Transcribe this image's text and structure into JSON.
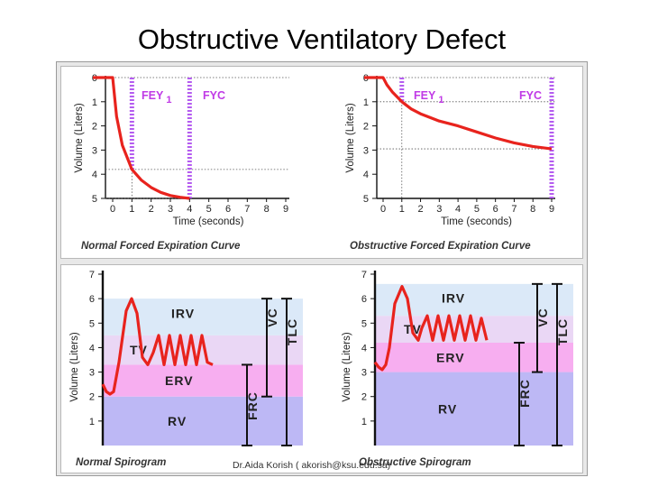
{
  "slide": {
    "title": "Obstructive Ventilatory Defect",
    "footer": "Dr.Aida Korish ( akorish@ksu.edu.sa)"
  },
  "colors": {
    "curve": "#e8231d",
    "marker": "#b45cf0",
    "label": "#c03ae6",
    "irv": "#dbe9f8",
    "tv": "#ead7f5",
    "erv": "#f7aef0",
    "rv": "#bdb8f5"
  },
  "chart_data": [
    {
      "type": "line",
      "caption": "Normal Forced Expiration Curve",
      "xlabel": "Time (seconds)",
      "ylabel": "Volume (Liters)",
      "xticks": [
        "0",
        "1",
        "2",
        "3",
        "4",
        "5",
        "6",
        "7",
        "8",
        "9"
      ],
      "yticks": [
        "0",
        "1",
        "2",
        "3",
        "4",
        "5"
      ],
      "xlim": [
        0,
        9
      ],
      "ylim": [
        0,
        5
      ],
      "markers": [
        {
          "label": "FEY",
          "sub": "1",
          "x": 1
        },
        {
          "label": "FYC",
          "x": 4
        }
      ],
      "series": [
        {
          "x": [
            -0.5,
            0,
            0.2,
            0.5,
            1,
            1.5,
            2,
            2.5,
            3,
            3.5,
            4
          ],
          "y": [
            0,
            0,
            1.6,
            2.8,
            3.8,
            4.25,
            4.55,
            4.75,
            4.88,
            4.95,
            5
          ]
        }
      ]
    },
    {
      "type": "line",
      "caption": "Obstructive Forced Expiration Curve",
      "xlabel": "Time (seconds)",
      "ylabel": "Volume (Liters)",
      "xticks": [
        "0",
        "1",
        "2",
        "3",
        "4",
        "5",
        "6",
        "7",
        "8",
        "9"
      ],
      "yticks": [
        "0",
        "1",
        "2",
        "3",
        "4",
        "5"
      ],
      "xlim": [
        0,
        9
      ],
      "ylim": [
        0,
        5
      ],
      "markers": [
        {
          "label": "FEY",
          "sub": "1",
          "x": 1
        },
        {
          "label": "FYC",
          "x": 9
        }
      ],
      "series": [
        {
          "x": [
            -0.5,
            0,
            0.2,
            0.5,
            1,
            1.5,
            2,
            3,
            4,
            5,
            6,
            7,
            8,
            9
          ],
          "y": [
            0,
            0,
            0.3,
            0.6,
            1,
            1.3,
            1.5,
            1.8,
            2.0,
            2.25,
            2.5,
            2.7,
            2.85,
            2.95
          ]
        }
      ]
    },
    {
      "type": "line",
      "caption": "Normal Spirogram",
      "ylabel": "Volume (Liters)",
      "yticks": [
        "1",
        "2",
        "3",
        "4",
        "5",
        "6",
        "7"
      ],
      "ylim": [
        0,
        7
      ],
      "bands": [
        {
          "label": "RV",
          "from": 0,
          "to": 2
        },
        {
          "label": "ERV",
          "from": 2,
          "to": 3.3
        },
        {
          "label": "TV",
          "from": 3.3,
          "to": 4.5
        },
        {
          "label": "IRV",
          "from": 4.5,
          "to": 6
        }
      ],
      "brackets": [
        {
          "label": "FRC",
          "from": 0,
          "to": 3.3
        },
        {
          "label": "VC",
          "from": 2,
          "to": 6
        },
        {
          "label": "TLC",
          "from": 0,
          "to": 6
        }
      ],
      "series": [
        {
          "x": [
            0,
            4,
            8,
            12,
            18,
            26,
            32,
            38,
            44,
            50,
            56,
            62,
            68,
            74,
            80,
            86,
            92,
            98,
            104,
            110,
            116,
            122
          ],
          "y": [
            2.5,
            2.2,
            2.1,
            2.2,
            3.4,
            5.5,
            6.0,
            5.4,
            3.6,
            3.3,
            3.8,
            4.5,
            3.3,
            4.5,
            3.3,
            4.5,
            3.3,
            4.5,
            3.3,
            4.5,
            3.4,
            3.3
          ]
        }
      ]
    },
    {
      "type": "line",
      "caption": "Obstructive Spirogram",
      "ylabel": "Volume (Liters)",
      "yticks": [
        "1",
        "2",
        "3",
        "4",
        "5",
        "6",
        "7"
      ],
      "ylim": [
        0,
        7
      ],
      "bands": [
        {
          "label": "RV",
          "from": 0,
          "to": 3
        },
        {
          "label": "ERV",
          "from": 3,
          "to": 4.2
        },
        {
          "label": "TV",
          "from": 4.2,
          "to": 5.3
        },
        {
          "label": "IRV",
          "from": 5.3,
          "to": 6.6
        }
      ],
      "brackets": [
        {
          "label": "FRC",
          "from": 0,
          "to": 4.2
        },
        {
          "label": "VC",
          "from": 3,
          "to": 6.6
        },
        {
          "label": "TLC",
          "from": 0,
          "to": 6.6
        }
      ],
      "series": [
        {
          "x": [
            0,
            4,
            8,
            12,
            16,
            22,
            30,
            36,
            42,
            48,
            52,
            58,
            64,
            70,
            76,
            82,
            88,
            94,
            100,
            106,
            112,
            118,
            124
          ],
          "y": [
            3.4,
            3.2,
            3.1,
            3.3,
            4.0,
            5.8,
            6.5,
            6.0,
            4.6,
            4.3,
            4.8,
            5.3,
            4.3,
            5.3,
            4.3,
            5.3,
            4.3,
            5.3,
            4.3,
            5.3,
            4.3,
            5.2,
            4.3
          ]
        }
      ]
    }
  ]
}
